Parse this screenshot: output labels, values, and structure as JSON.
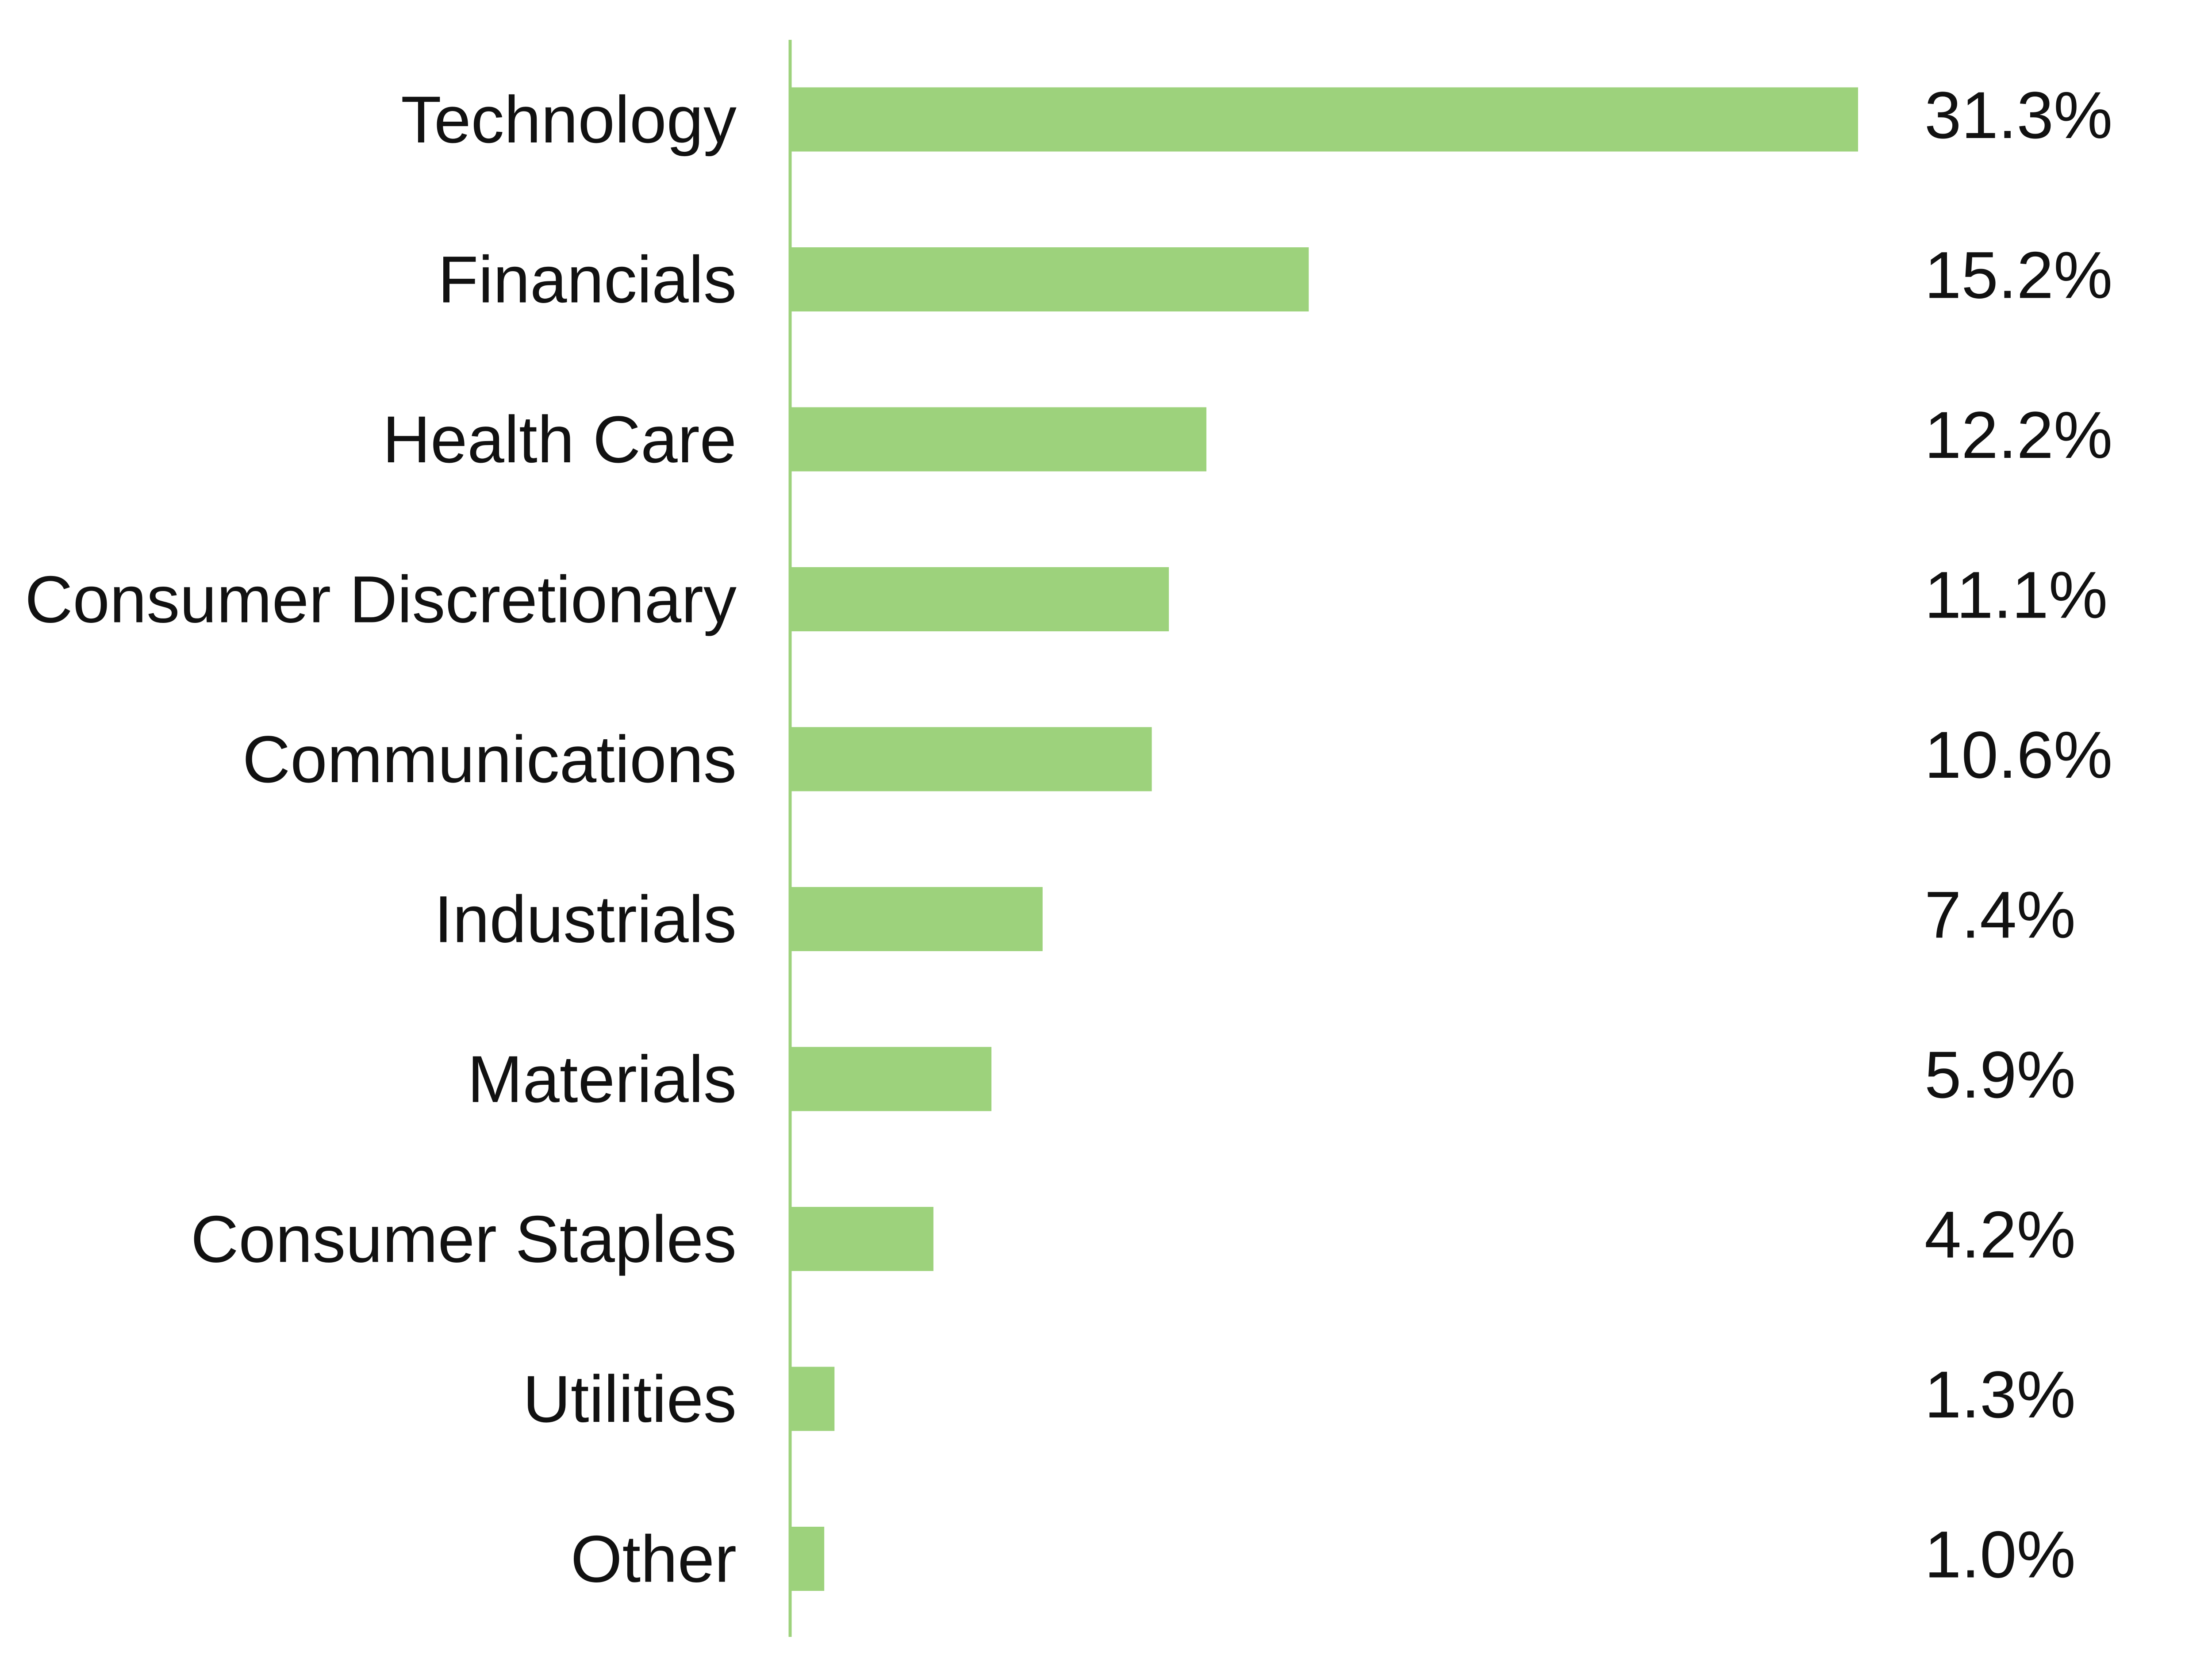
{
  "chart_data": {
    "type": "bar",
    "orientation": "horizontal",
    "categories": [
      "Technology",
      "Financials",
      "Health Care",
      "Consumer Discretionary",
      "Communications",
      "Industrials",
      "Materials",
      "Consumer Staples",
      "Utilities",
      "Other"
    ],
    "values": [
      31.3,
      15.2,
      12.2,
      11.1,
      10.6,
      7.4,
      5.9,
      4.2,
      1.3,
      1.0
    ],
    "value_labels": [
      "31.3%",
      "15.2%",
      "12.2%",
      "11.1%",
      "10.6%",
      "7.4%",
      "5.9%",
      "4.2%",
      "1.3%",
      "1.0%"
    ],
    "unit": "%",
    "title": "",
    "xlabel": "",
    "ylabel": "",
    "xlim": [
      0,
      31.3
    ],
    "grid": false,
    "legend": "none",
    "bar_color": "#9DD27C",
    "axis_color": "#9DD27C"
  }
}
